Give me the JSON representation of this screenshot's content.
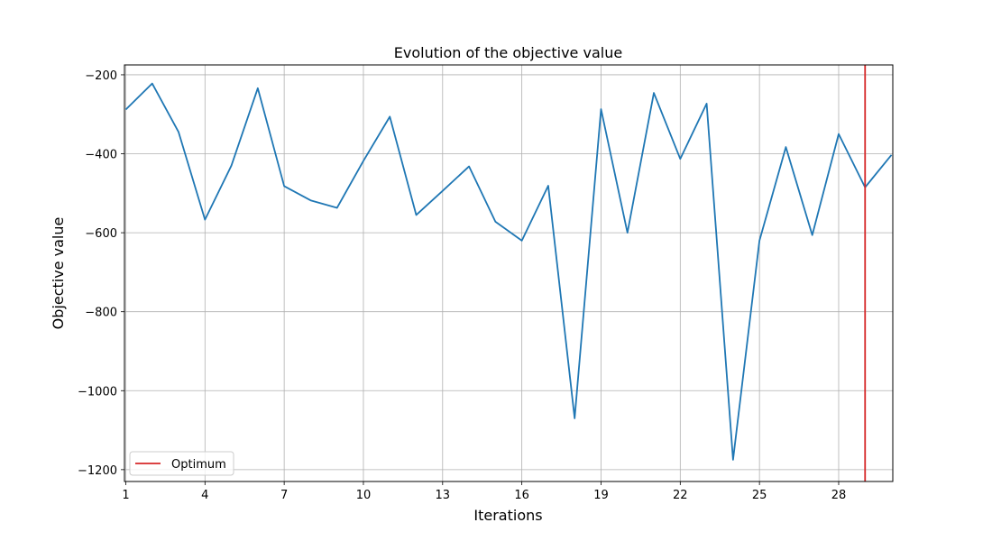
{
  "chart_data": {
    "type": "line",
    "title": "Evolution of the objective value",
    "xlabel": "Iterations",
    "ylabel": "Objective value",
    "xlim": [
      0.95,
      30.05
    ],
    "ylim": [
      -1230,
      -175
    ],
    "xticks": [
      1,
      4,
      7,
      10,
      13,
      16,
      19,
      22,
      25,
      28
    ],
    "yticks": [
      -1200,
      -1000,
      -800,
      -600,
      -400,
      -200
    ],
    "ytick_labels": [
      "−1200",
      "−1000",
      "−800",
      "−600",
      "−400",
      "−200"
    ],
    "grid": true,
    "series": [
      {
        "color": "#1f77b4",
        "x": [
          1,
          2,
          3,
          4,
          5,
          6,
          7,
          8,
          9,
          10,
          11,
          12,
          13,
          14,
          15,
          16,
          17,
          18,
          19,
          20,
          21,
          22,
          23,
          24,
          25,
          26,
          27,
          28,
          29,
          30
        ],
        "y": [
          -288,
          -222,
          -345,
          -567,
          -430,
          -234,
          -482,
          -518,
          -537,
          -418,
          -306,
          -555,
          -494,
          -432,
          -572,
          -620,
          -481,
          -1070,
          -287,
          -600,
          -246,
          -413,
          -273,
          -1175,
          -620,
          -383,
          -606,
          -350,
          -485,
          -403
        ]
      }
    ],
    "vline": {
      "name": "Optimum",
      "x": 29,
      "color": "#d62728"
    },
    "legend": {
      "placement": "bottom-left",
      "entries": [
        "Optimum"
      ]
    }
  }
}
